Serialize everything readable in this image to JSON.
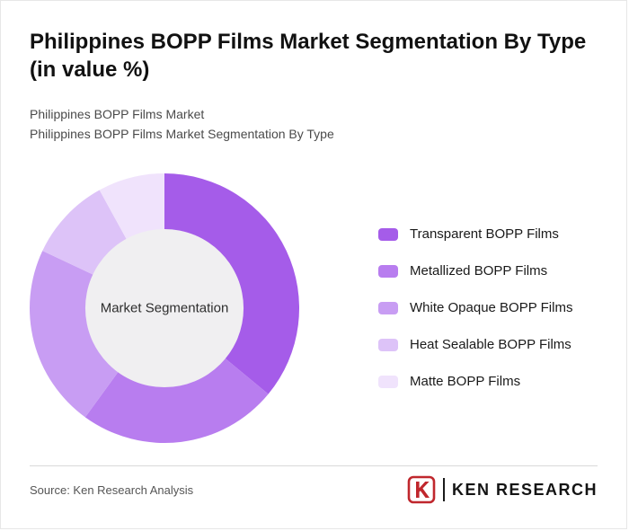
{
  "title": "Philippines BOPP Films Market Segmentation By Type (in value %)",
  "subtitle_line1": "Philippines BOPP Films Market",
  "subtitle_line2": "Philippines BOPP Films Market Segmentation By Type",
  "chart_data": {
    "type": "pie",
    "donut": true,
    "title": "Philippines BOPP Films Market Segmentation By Type (in value %)",
    "center_label": "Market Segmentation",
    "categories": [
      "Transparent BOPP Films",
      "Metallized BOPP Films",
      "White Opaque BOPP Films",
      "Heat Sealable BOPP Films",
      "Matte BOPP Films"
    ],
    "values": [
      36,
      24,
      22,
      10,
      8
    ],
    "colors": [
      "#a55ce9",
      "#b87def",
      "#c89df3",
      "#ddc3f8",
      "#f0e3fc"
    ],
    "start_angle_deg": -90,
    "direction": "clockwise",
    "inner_radius_ratio": 0.587,
    "center_fill": "#f0eff1",
    "legend_position": "right"
  },
  "footer": {
    "source": "Source: Ken Research Analysis",
    "brand": "KEN RESEARCH",
    "brand_icon_letter": "K",
    "brand_color": "#c0272d"
  }
}
